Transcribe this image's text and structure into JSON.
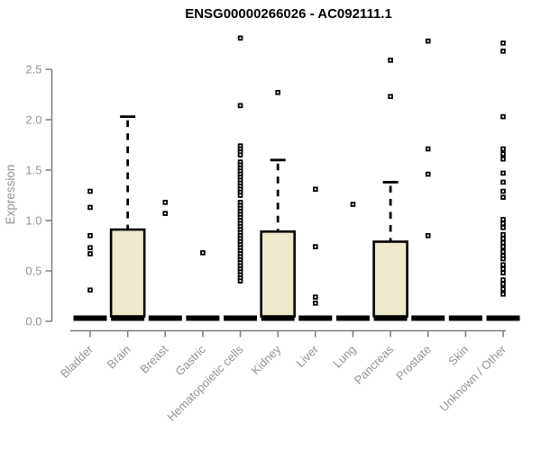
{
  "colors": {
    "box_fill": "#EEE8CD",
    "box_stroke": "#000000",
    "zero_bar": "#000000",
    "axis": "#7B7B7B",
    "tick_label": "#939393",
    "title_color": "#000000",
    "background": "#FFFFFF"
  },
  "chart_data": {
    "type": "boxplot",
    "title": "ENSG00000266026 - AC092111.1",
    "xlabel": "",
    "ylabel": "Expression",
    "ylim": [
      0,
      2.85
    ],
    "grid": false,
    "yticks": [
      0,
      0.5,
      1,
      1.5,
      2,
      2.5
    ],
    "ytick_labels": [
      "0.0",
      "0.5",
      "1.0",
      "1.5",
      "2.0",
      "2.5"
    ],
    "categories": [
      "Bladder",
      "Brain",
      "Breast",
      "Gastric",
      "Hematopoietic cells",
      "Kidney",
      "Liver",
      "Lung",
      "Pancreas",
      "Prostate",
      "Skin",
      "Unknown / Other"
    ],
    "boxes": [
      {
        "label": "Bladder",
        "median": 0,
        "q1": 0,
        "q3": 0,
        "whisker_low": 0,
        "whisker_high": 0,
        "outliers": [
          1.29,
          1.13,
          0.85,
          0.73,
          0.67,
          0.31
        ]
      },
      {
        "label": "Brain",
        "median": 0,
        "q1": 0,
        "q3": 0.91,
        "whisker_low": 0,
        "whisker_high": 2.03,
        "outliers": []
      },
      {
        "label": "Breast",
        "median": 0,
        "q1": 0,
        "q3": 0,
        "whisker_low": 0,
        "whisker_high": 0,
        "outliers": [
          1.18,
          1.07
        ]
      },
      {
        "label": "Gastric",
        "median": 0,
        "q1": 0,
        "q3": 0,
        "whisker_low": 0,
        "whisker_high": 0,
        "outliers": [
          0.68
        ]
      },
      {
        "label": "Hematopoietic cells",
        "median": 0,
        "q1": 0,
        "q3": 0,
        "whisker_low": 0,
        "whisker_high": 0,
        "outliers": [
          2.81,
          2.14,
          1.74,
          1.71,
          1.68,
          1.65,
          1.58,
          1.55,
          1.52,
          1.49,
          1.46,
          1.43,
          1.4,
          1.37,
          1.34,
          1.31,
          1.28,
          1.25,
          1.18,
          1.15,
          1.12,
          1.09,
          1.06,
          1.03,
          1.0,
          0.97,
          0.94,
          0.91,
          0.88,
          0.85,
          0.82,
          0.79,
          0.76,
          0.73,
          0.7,
          0.67,
          0.64,
          0.61,
          0.58,
          0.55,
          0.52,
          0.49,
          0.46,
          0.43,
          0.4
        ]
      },
      {
        "label": "Kidney",
        "median": 0,
        "q1": 0,
        "q3": 0.89,
        "whisker_low": 0,
        "whisker_high": 1.6,
        "outliers": [
          2.27
        ]
      },
      {
        "label": "Liver",
        "median": 0,
        "q1": 0,
        "q3": 0,
        "whisker_low": 0,
        "whisker_high": 0,
        "outliers": [
          1.31,
          0.74,
          0.24,
          0.18
        ]
      },
      {
        "label": "Lung",
        "median": 0,
        "q1": 0,
        "q3": 0,
        "whisker_low": 0,
        "whisker_high": 0,
        "outliers": [
          1.16
        ]
      },
      {
        "label": "Pancreas",
        "median": 0,
        "q1": 0,
        "q3": 0.79,
        "whisker_low": 0,
        "whisker_high": 1.38,
        "outliers": [
          2.59,
          2.23
        ]
      },
      {
        "label": "Prostate",
        "median": 0,
        "q1": 0,
        "q3": 0,
        "whisker_low": 0,
        "whisker_high": 0,
        "outliers": [
          2.78,
          1.71,
          1.46,
          0.85
        ]
      },
      {
        "label": "Skin",
        "median": 0,
        "q1": 0,
        "q3": 0,
        "whisker_low": 0,
        "whisker_high": 0,
        "outliers": []
      },
      {
        "label": "Unknown / Other",
        "median": 0,
        "q1": 0,
        "q3": 0,
        "whisker_low": 0,
        "whisker_high": 0,
        "outliers": [
          2.76,
          2.68,
          2.03,
          1.71,
          1.66,
          1.61,
          1.47,
          1.38,
          1.29,
          1.23,
          1.01,
          0.97,
          0.93,
          0.86,
          0.82,
          0.78,
          0.74,
          0.69,
          0.65,
          0.62,
          0.56,
          0.52,
          0.48,
          0.41,
          0.37,
          0.32,
          0.27
        ]
      }
    ]
  }
}
